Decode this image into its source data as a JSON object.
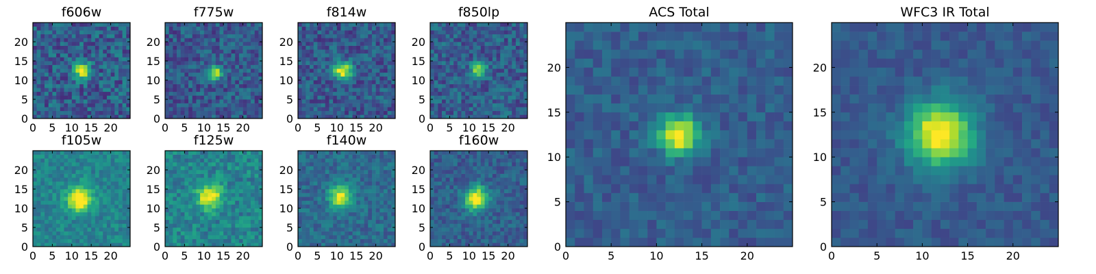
{
  "chart_data": [
    {
      "type": "heatmap",
      "title": "f606w",
      "colormap": "viridis",
      "xlim": [
        0,
        25
      ],
      "ylim": [
        0,
        25
      ],
      "xticks": [
        0,
        5,
        10,
        15,
        20
      ],
      "yticks": [
        0,
        5,
        10,
        15,
        20
      ],
      "peak": {
        "x": 12.5,
        "y": 12.5
      },
      "peak_sigma": 1.5,
      "peak_amplitude": 0.7,
      "noise": 0.35,
      "background": 0.3
    },
    {
      "type": "heatmap",
      "title": "f775w",
      "colormap": "viridis",
      "xlim": [
        0,
        25
      ],
      "ylim": [
        0,
        25
      ],
      "xticks": [
        0,
        5,
        10,
        15,
        20
      ],
      "yticks": [
        0,
        5,
        10,
        15,
        20
      ],
      "peak": {
        "x": 13,
        "y": 12
      },
      "peak_sigma": 1.2,
      "peak_amplitude": 0.75,
      "noise": 0.3,
      "background": 0.28
    },
    {
      "type": "heatmap",
      "title": "f814w",
      "colormap": "viridis",
      "xlim": [
        0,
        25
      ],
      "ylim": [
        0,
        25
      ],
      "xticks": [
        0,
        5,
        10,
        15,
        20
      ],
      "yticks": [
        0,
        5,
        10,
        15,
        20
      ],
      "peak": {
        "x": 11.5,
        "y": 12.5
      },
      "peak_sigma": 1.6,
      "peak_amplitude": 0.75,
      "noise": 0.3,
      "background": 0.28
    },
    {
      "type": "heatmap",
      "title": "f850lp",
      "colormap": "viridis",
      "xlim": [
        0,
        25
      ],
      "ylim": [
        0,
        25
      ],
      "xticks": [
        0,
        5,
        10,
        15,
        20
      ],
      "yticks": [
        0,
        5,
        10,
        15,
        20
      ],
      "peak": {
        "x": 12.5,
        "y": 12.5
      },
      "peak_sigma": 1.4,
      "peak_amplitude": 0.55,
      "noise": 0.3,
      "background": 0.3
    },
    {
      "type": "heatmap",
      "title": "f105w",
      "colormap": "viridis",
      "xlim": [
        0,
        25
      ],
      "ylim": [
        0,
        25
      ],
      "xticks": [
        0,
        5,
        10,
        15,
        20
      ],
      "yticks": [
        0,
        5,
        10,
        15,
        20
      ],
      "peak": {
        "x": 12,
        "y": 12.5
      },
      "peak_sigma": 2.2,
      "peak_amplitude": 0.7,
      "noise": 0.22,
      "background": 0.45
    },
    {
      "type": "heatmap",
      "title": "f125w",
      "colormap": "viridis",
      "xlim": [
        0,
        25
      ],
      "ylim": [
        0,
        25
      ],
      "xticks": [
        0,
        5,
        10,
        15,
        20
      ],
      "yticks": [
        0,
        5,
        10,
        15,
        20
      ],
      "peak": {
        "x": 11.5,
        "y": 13
      },
      "peak_sigma": 2.2,
      "peak_amplitude": 0.6,
      "noise": 0.28,
      "background": 0.45
    },
    {
      "type": "heatmap",
      "title": "f140w",
      "colormap": "viridis",
      "xlim": [
        0,
        25
      ],
      "ylim": [
        0,
        25
      ],
      "xticks": [
        0,
        5,
        10,
        15,
        20
      ],
      "yticks": [
        0,
        5,
        10,
        15,
        20
      ],
      "peak": {
        "x": 11,
        "y": 13
      },
      "peak_sigma": 2.0,
      "peak_amplitude": 0.65,
      "noise": 0.22,
      "background": 0.35
    },
    {
      "type": "heatmap",
      "title": "f160w",
      "colormap": "viridis",
      "xlim": [
        0,
        25
      ],
      "ylim": [
        0,
        25
      ],
      "xticks": [
        0,
        5,
        10,
        15,
        20
      ],
      "yticks": [
        0,
        5,
        10,
        15,
        20
      ],
      "peak": {
        "x": 12,
        "y": 12.5
      },
      "peak_sigma": 2.2,
      "peak_amplitude": 0.75,
      "noise": 0.22,
      "background": 0.3
    },
    {
      "type": "heatmap",
      "title": "ACS Total",
      "colormap": "viridis",
      "xlim": [
        0,
        25
      ],
      "ylim": [
        0,
        25
      ],
      "xticks": [
        0,
        5,
        10,
        15,
        20
      ],
      "yticks": [
        0,
        5,
        10,
        15,
        20
      ],
      "peak": {
        "x": 12.5,
        "y": 12.5
      },
      "peak_sigma": 1.5,
      "peak_amplitude": 0.75,
      "noise": 0.18,
      "background": 0.3
    },
    {
      "type": "heatmap",
      "title": "WFC3 IR Total",
      "colormap": "viridis",
      "xlim": [
        0,
        25
      ],
      "ylim": [
        0,
        25
      ],
      "xticks": [
        0,
        5,
        10,
        15,
        20
      ],
      "yticks": [
        0,
        5,
        10,
        15,
        20
      ],
      "peak": {
        "x": 12,
        "y": 12.5
      },
      "peak_sigma": 2.5,
      "peak_amplitude": 0.8,
      "noise": 0.14,
      "background": 0.28
    }
  ]
}
